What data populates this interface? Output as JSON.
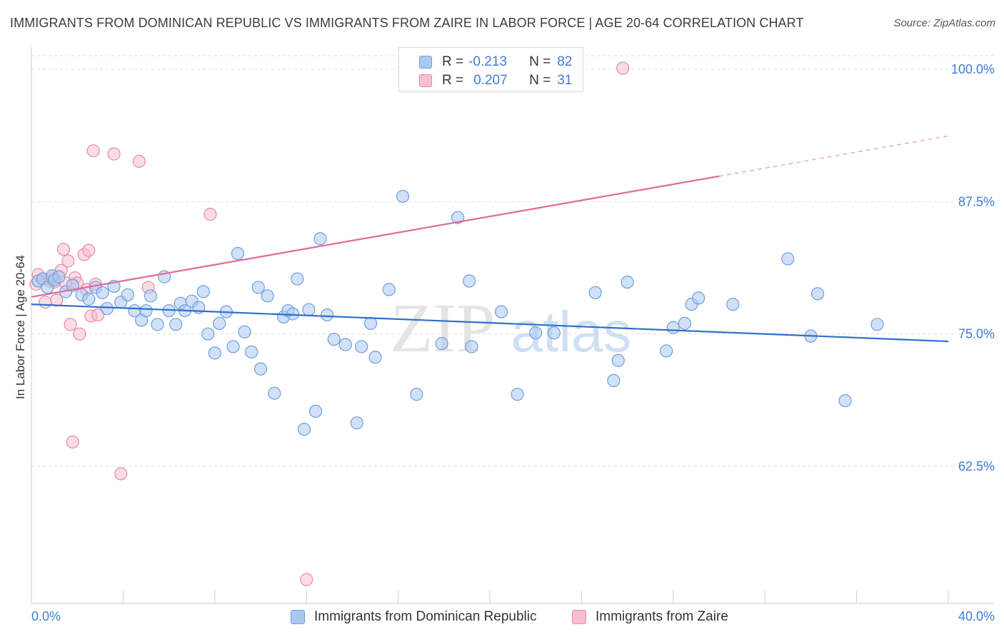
{
  "title": "IMMIGRANTS FROM DOMINICAN REPUBLIC VS IMMIGRANTS FROM ZAIRE IN LABOR FORCE | AGE 20-64 CORRELATION CHART",
  "source": "Source: ZipAtlas.com",
  "watermark": {
    "zip": "ZIP",
    "atlas": "atlas"
  },
  "legend": {
    "r_label": "R =",
    "n_label": "N =",
    "rows": [
      {
        "r": "-0.213",
        "n": "82",
        "color": "#a9c8f2",
        "border": "#6f9fdc"
      },
      {
        "r": "0.207",
        "n": "31",
        "color": "#f7bfd0",
        "border": "#e68aa6"
      }
    ]
  },
  "bottom_legend": [
    "Immigrants from Dominican Republic",
    "Immigrants from Zaire"
  ],
  "colors": {
    "blue_line": "#2e6fcc",
    "pink_line": "#e06b96",
    "axis_text": "#3f7dd6"
  },
  "chart_data": {
    "type": "scatter",
    "xlabel": "",
    "ylabel": "In Labor Force | Age 20-64",
    "xlim": [
      0,
      40
    ],
    "ylim": [
      51.5,
      102
    ],
    "x_tick_labels": [
      "0.0%",
      "40.0%"
    ],
    "y_ticks": [
      62.5,
      75.0,
      87.5,
      100.0
    ],
    "y_tick_labels": [
      "62.5%",
      "75.0%",
      "87.5%",
      "100.0%"
    ],
    "grid": "dashed horizontal",
    "legend_position": "top-center",
    "series": [
      {
        "name": "Immigrants from Dominican Republic",
        "color": "#a9c8f2",
        "stroke": "#6f9fdc",
        "trend": {
          "x": [
            0,
            40
          ],
          "y": [
            77.8,
            74.3
          ],
          "style": "solid"
        },
        "points": [
          [
            0.3,
            80.0
          ],
          [
            0.5,
            80.2
          ],
          [
            0.7,
            79.4
          ],
          [
            0.9,
            80.5
          ],
          [
            1.0,
            80.1
          ],
          [
            1.2,
            80.4
          ],
          [
            1.5,
            79.0
          ],
          [
            1.8,
            79.6
          ],
          [
            2.2,
            78.7
          ],
          [
            2.5,
            78.3
          ],
          [
            2.8,
            79.4
          ],
          [
            3.1,
            78.9
          ],
          [
            3.3,
            77.4
          ],
          [
            3.6,
            79.5
          ],
          [
            3.9,
            78.0
          ],
          [
            4.2,
            78.7
          ],
          [
            4.5,
            77.2
          ],
          [
            4.8,
            76.3
          ],
          [
            5.0,
            77.2
          ],
          [
            5.2,
            78.6
          ],
          [
            5.5,
            75.9
          ],
          [
            5.8,
            80.4
          ],
          [
            6.0,
            77.2
          ],
          [
            6.3,
            75.9
          ],
          [
            6.5,
            77.9
          ],
          [
            6.7,
            77.2
          ],
          [
            7.0,
            78.1
          ],
          [
            7.3,
            77.5
          ],
          [
            7.5,
            79.0
          ],
          [
            7.7,
            75.0
          ],
          [
            8.0,
            73.2
          ],
          [
            8.2,
            76.0
          ],
          [
            8.5,
            77.1
          ],
          [
            8.8,
            73.8
          ],
          [
            9.0,
            82.6
          ],
          [
            9.3,
            75.2
          ],
          [
            9.6,
            73.3
          ],
          [
            9.9,
            79.4
          ],
          [
            10.0,
            71.7
          ],
          [
            10.3,
            78.6
          ],
          [
            10.6,
            69.4
          ],
          [
            11.0,
            76.6
          ],
          [
            11.2,
            77.2
          ],
          [
            11.4,
            76.9
          ],
          [
            11.6,
            80.2
          ],
          [
            11.9,
            66.0
          ],
          [
            12.1,
            77.3
          ],
          [
            12.4,
            67.7
          ],
          [
            12.6,
            84.0
          ],
          [
            12.9,
            76.8
          ],
          [
            13.2,
            74.5
          ],
          [
            13.7,
            74.0
          ],
          [
            14.2,
            66.6
          ],
          [
            14.4,
            73.8
          ],
          [
            14.8,
            76.0
          ],
          [
            15.0,
            72.8
          ],
          [
            15.6,
            79.2
          ],
          [
            16.2,
            88.0
          ],
          [
            16.8,
            69.3
          ],
          [
            17.9,
            74.1
          ],
          [
            18.6,
            86.0
          ],
          [
            19.1,
            80.0
          ],
          [
            19.2,
            73.8
          ],
          [
            20.5,
            77.1
          ],
          [
            21.2,
            69.3
          ],
          [
            22.0,
            75.1
          ],
          [
            22.8,
            75.1
          ],
          [
            24.6,
            78.9
          ],
          [
            25.4,
            70.6
          ],
          [
            25.6,
            72.5
          ],
          [
            26.0,
            79.9
          ],
          [
            27.7,
            73.4
          ],
          [
            28.0,
            75.6
          ],
          [
            28.5,
            76.0
          ],
          [
            28.8,
            77.8
          ],
          [
            29.1,
            78.4
          ],
          [
            30.6,
            77.8
          ],
          [
            33.0,
            82.1
          ],
          [
            34.0,
            74.8
          ],
          [
            34.3,
            78.8
          ],
          [
            35.5,
            68.7
          ],
          [
            36.9,
            75.9
          ]
        ]
      },
      {
        "name": "Immigrants from Zaire",
        "color": "#f7bfd0",
        "stroke": "#e68aa6",
        "trend": {
          "x": [
            0,
            30
          ],
          "y": [
            78.5,
            89.9
          ],
          "dashed_to": [
            40,
            93.7
          ]
        },
        "points": [
          [
            0.2,
            79.7
          ],
          [
            0.3,
            80.6
          ],
          [
            0.5,
            80.2
          ],
          [
            0.6,
            78.0
          ],
          [
            0.8,
            80.0
          ],
          [
            1.0,
            79.9
          ],
          [
            1.1,
            78.2
          ],
          [
            1.3,
            81.0
          ],
          [
            1.4,
            83.0
          ],
          [
            1.6,
            81.9
          ],
          [
            1.7,
            75.9
          ],
          [
            1.9,
            80.3
          ],
          [
            2.1,
            75.0
          ],
          [
            2.3,
            82.5
          ],
          [
            2.4,
            79.2
          ],
          [
            2.5,
            82.9
          ],
          [
            2.6,
            76.7
          ],
          [
            2.8,
            79.7
          ],
          [
            2.9,
            76.8
          ],
          [
            2.7,
            92.3
          ],
          [
            3.6,
            92.0
          ],
          [
            4.7,
            91.3
          ],
          [
            5.1,
            79.4
          ],
          [
            7.8,
            86.3
          ],
          [
            1.8,
            64.8
          ],
          [
            3.9,
            61.8
          ],
          [
            12.0,
            51.8
          ],
          [
            25.8,
            100.1
          ],
          [
            1.5,
            79.8
          ],
          [
            0.9,
            80.3
          ],
          [
            2.0,
            79.8
          ]
        ]
      }
    ]
  }
}
